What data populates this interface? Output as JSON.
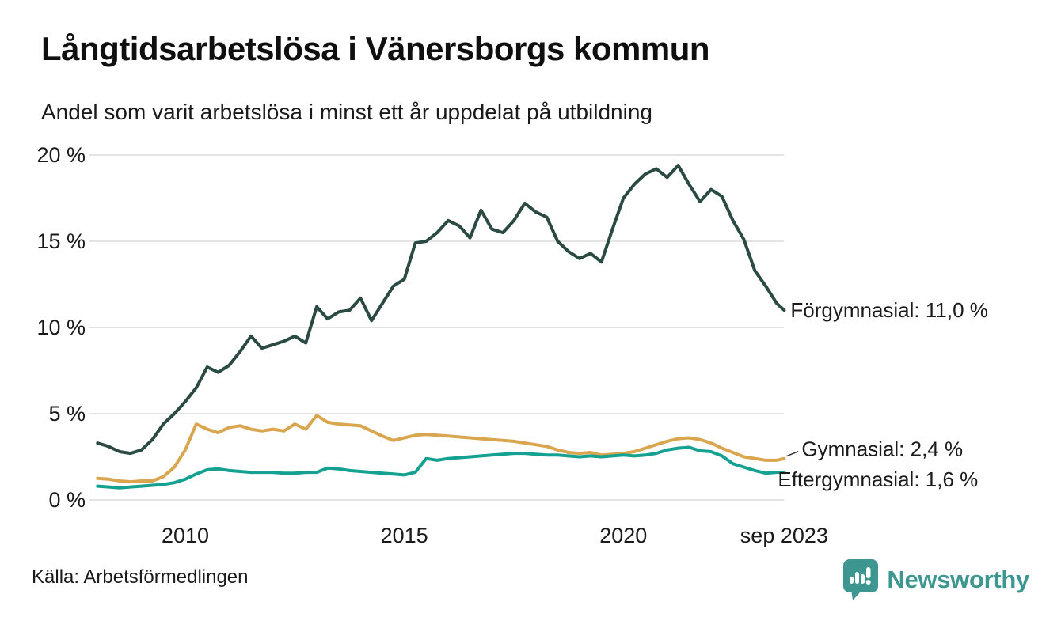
{
  "header": {
    "title": "Långtidsarbetslösa i Vänersborgs kommun",
    "subtitle": "Andel som varit arbetslösa i minst ett år uppdelat på utbildning"
  },
  "footer": {
    "source": "Källa: Arbetsförmedlingen",
    "brand": "Newsworthy",
    "brand_color": "#3d968f"
  },
  "chart_data": {
    "type": "line",
    "title": "Långtidsarbetslösa i Vänersborgs kommun",
    "subtitle": "Andel som varit arbetslösa i minst ett år uppdelat på utbildning",
    "xlabel": "",
    "ylabel": "",
    "ylim": [
      0,
      20
    ],
    "xlim": [
      2008.0,
      2023.75
    ],
    "grid": true,
    "grid_color": "#e4e4e4",
    "y_ticks": [
      {
        "label": "20 %",
        "value": 20
      },
      {
        "label": "15 %",
        "value": 15
      },
      {
        "label": "10 %",
        "value": 10
      },
      {
        "label": "5 %",
        "value": 5
      },
      {
        "label": "0 %",
        "value": 0
      }
    ],
    "x_ticks": [
      {
        "label": "2010",
        "year": 2010
      },
      {
        "label": "2015",
        "year": 2015
      },
      {
        "label": "2020",
        "year": 2020
      },
      {
        "label": "sep 2023",
        "year": 2023.67
      }
    ],
    "legend_position": "end-of-line-labels",
    "series": [
      {
        "name": "Förgymnasial",
        "color": "#2a4a43",
        "end_label": "Förgymnasial: 11,0 %",
        "end_value_text": "11,0 %",
        "points": [
          [
            2008.0,
            3.3
          ],
          [
            2008.25,
            3.1
          ],
          [
            2008.5,
            2.8
          ],
          [
            2008.75,
            2.7
          ],
          [
            2009.0,
            2.9
          ],
          [
            2009.25,
            3.5
          ],
          [
            2009.5,
            4.4
          ],
          [
            2009.75,
            5.0
          ],
          [
            2010.0,
            5.7
          ],
          [
            2010.25,
            6.5
          ],
          [
            2010.5,
            7.7
          ],
          [
            2010.75,
            7.4
          ],
          [
            2011.0,
            7.8
          ],
          [
            2011.25,
            8.6
          ],
          [
            2011.5,
            9.5
          ],
          [
            2011.75,
            8.8
          ],
          [
            2012.0,
            9.0
          ],
          [
            2012.25,
            9.2
          ],
          [
            2012.5,
            9.5
          ],
          [
            2012.75,
            9.1
          ],
          [
            2013.0,
            11.2
          ],
          [
            2013.25,
            10.5
          ],
          [
            2013.5,
            10.9
          ],
          [
            2013.75,
            11.0
          ],
          [
            2014.0,
            11.7
          ],
          [
            2014.25,
            10.4
          ],
          [
            2014.5,
            11.4
          ],
          [
            2014.75,
            12.4
          ],
          [
            2015.0,
            12.8
          ],
          [
            2015.25,
            14.9
          ],
          [
            2015.5,
            15.0
          ],
          [
            2015.75,
            15.5
          ],
          [
            2016.0,
            16.2
          ],
          [
            2016.25,
            15.9
          ],
          [
            2016.5,
            15.2
          ],
          [
            2016.75,
            16.8
          ],
          [
            2017.0,
            15.7
          ],
          [
            2017.25,
            15.5
          ],
          [
            2017.5,
            16.2
          ],
          [
            2017.75,
            17.2
          ],
          [
            2018.0,
            16.7
          ],
          [
            2018.25,
            16.4
          ],
          [
            2018.5,
            15.0
          ],
          [
            2018.75,
            14.4
          ],
          [
            2019.0,
            14.0
          ],
          [
            2019.25,
            14.3
          ],
          [
            2019.5,
            13.8
          ],
          [
            2019.75,
            15.7
          ],
          [
            2020.0,
            17.5
          ],
          [
            2020.25,
            18.3
          ],
          [
            2020.5,
            18.9
          ],
          [
            2020.75,
            19.2
          ],
          [
            2021.0,
            18.7
          ],
          [
            2021.25,
            19.4
          ],
          [
            2021.5,
            18.3
          ],
          [
            2021.75,
            17.3
          ],
          [
            2022.0,
            18.0
          ],
          [
            2022.25,
            17.6
          ],
          [
            2022.5,
            16.2
          ],
          [
            2022.75,
            15.1
          ],
          [
            2023.0,
            13.3
          ],
          [
            2023.25,
            12.4
          ],
          [
            2023.5,
            11.4
          ],
          [
            2023.67,
            11.0
          ]
        ]
      },
      {
        "name": "Gymnasial",
        "color": "#d9a64f",
        "end_label": "Gymnasial:  2,4 %",
        "end_value_text": "2,4 %",
        "points": [
          [
            2008.0,
            1.25
          ],
          [
            2008.25,
            1.2
          ],
          [
            2008.5,
            1.1
          ],
          [
            2008.75,
            1.05
          ],
          [
            2009.0,
            1.1
          ],
          [
            2009.25,
            1.1
          ],
          [
            2009.5,
            1.35
          ],
          [
            2009.75,
            1.9
          ],
          [
            2010.0,
            2.9
          ],
          [
            2010.25,
            4.4
          ],
          [
            2010.5,
            4.1
          ],
          [
            2010.75,
            3.9
          ],
          [
            2011.0,
            4.2
          ],
          [
            2011.25,
            4.3
          ],
          [
            2011.5,
            4.1
          ],
          [
            2011.75,
            4.0
          ],
          [
            2012.0,
            4.1
          ],
          [
            2012.25,
            4.0
          ],
          [
            2012.5,
            4.4
          ],
          [
            2012.75,
            4.1
          ],
          [
            2013.0,
            4.9
          ],
          [
            2013.25,
            4.5
          ],
          [
            2013.5,
            4.4
          ],
          [
            2013.75,
            4.35
          ],
          [
            2014.0,
            4.3
          ],
          [
            2014.25,
            4.0
          ],
          [
            2014.5,
            3.7
          ],
          [
            2014.75,
            3.45
          ],
          [
            2015.0,
            3.6
          ],
          [
            2015.25,
            3.75
          ],
          [
            2015.5,
            3.8
          ],
          [
            2015.75,
            3.75
          ],
          [
            2016.0,
            3.7
          ],
          [
            2016.25,
            3.65
          ],
          [
            2016.5,
            3.6
          ],
          [
            2016.75,
            3.55
          ],
          [
            2017.0,
            3.5
          ],
          [
            2017.25,
            3.45
          ],
          [
            2017.5,
            3.4
          ],
          [
            2017.75,
            3.3
          ],
          [
            2018.0,
            3.2
          ],
          [
            2018.25,
            3.1
          ],
          [
            2018.5,
            2.9
          ],
          [
            2018.75,
            2.75
          ],
          [
            2019.0,
            2.7
          ],
          [
            2019.25,
            2.75
          ],
          [
            2019.5,
            2.6
          ],
          [
            2019.75,
            2.65
          ],
          [
            2020.0,
            2.7
          ],
          [
            2020.25,
            2.8
          ],
          [
            2020.5,
            3.0
          ],
          [
            2020.75,
            3.2
          ],
          [
            2021.0,
            3.4
          ],
          [
            2021.25,
            3.55
          ],
          [
            2021.5,
            3.6
          ],
          [
            2021.75,
            3.5
          ],
          [
            2022.0,
            3.3
          ],
          [
            2022.25,
            3.0
          ],
          [
            2022.5,
            2.75
          ],
          [
            2022.75,
            2.5
          ],
          [
            2023.0,
            2.4
          ],
          [
            2023.25,
            2.3
          ],
          [
            2023.5,
            2.3
          ],
          [
            2023.67,
            2.4
          ]
        ]
      },
      {
        "name": "Eftergymnasial",
        "color": "#14a191",
        "end_label": "Eftergymnasial:  1,6 %",
        "end_value_text": "1,6 %",
        "points": [
          [
            2008.0,
            0.8
          ],
          [
            2008.25,
            0.75
          ],
          [
            2008.5,
            0.7
          ],
          [
            2008.75,
            0.75
          ],
          [
            2009.0,
            0.8
          ],
          [
            2009.25,
            0.85
          ],
          [
            2009.5,
            0.9
          ],
          [
            2009.75,
            1.0
          ],
          [
            2010.0,
            1.2
          ],
          [
            2010.25,
            1.5
          ],
          [
            2010.5,
            1.75
          ],
          [
            2010.75,
            1.8
          ],
          [
            2011.0,
            1.7
          ],
          [
            2011.25,
            1.65
          ],
          [
            2011.5,
            1.6
          ],
          [
            2011.75,
            1.6
          ],
          [
            2012.0,
            1.6
          ],
          [
            2012.25,
            1.55
          ],
          [
            2012.5,
            1.55
          ],
          [
            2012.75,
            1.6
          ],
          [
            2013.0,
            1.6
          ],
          [
            2013.25,
            1.85
          ],
          [
            2013.5,
            1.8
          ],
          [
            2013.75,
            1.7
          ],
          [
            2014.0,
            1.65
          ],
          [
            2014.25,
            1.6
          ],
          [
            2014.5,
            1.55
          ],
          [
            2014.75,
            1.5
          ],
          [
            2015.0,
            1.45
          ],
          [
            2015.25,
            1.6
          ],
          [
            2015.5,
            2.4
          ],
          [
            2015.75,
            2.3
          ],
          [
            2016.0,
            2.4
          ],
          [
            2016.25,
            2.45
          ],
          [
            2016.5,
            2.5
          ],
          [
            2016.75,
            2.55
          ],
          [
            2017.0,
            2.6
          ],
          [
            2017.25,
            2.65
          ],
          [
            2017.5,
            2.7
          ],
          [
            2017.75,
            2.7
          ],
          [
            2018.0,
            2.65
          ],
          [
            2018.25,
            2.6
          ],
          [
            2018.5,
            2.6
          ],
          [
            2018.75,
            2.55
          ],
          [
            2019.0,
            2.5
          ],
          [
            2019.25,
            2.55
          ],
          [
            2019.5,
            2.5
          ],
          [
            2019.75,
            2.55
          ],
          [
            2020.0,
            2.6
          ],
          [
            2020.25,
            2.55
          ],
          [
            2020.5,
            2.6
          ],
          [
            2020.75,
            2.7
          ],
          [
            2021.0,
            2.9
          ],
          [
            2021.25,
            3.0
          ],
          [
            2021.5,
            3.05
          ],
          [
            2021.75,
            2.85
          ],
          [
            2022.0,
            2.8
          ],
          [
            2022.25,
            2.55
          ],
          [
            2022.5,
            2.1
          ],
          [
            2022.75,
            1.9
          ],
          [
            2023.0,
            1.7
          ],
          [
            2023.25,
            1.55
          ],
          [
            2023.5,
            1.6
          ],
          [
            2023.67,
            1.6
          ]
        ]
      }
    ]
  }
}
